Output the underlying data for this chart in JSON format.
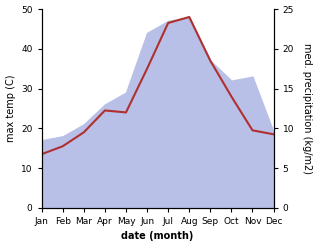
{
  "months": [
    "Jan",
    "Feb",
    "Mar",
    "Apr",
    "May",
    "Jun",
    "Jul",
    "Aug",
    "Sep",
    "Oct",
    "Nov",
    "Dec"
  ],
  "temp": [
    13.5,
    15.5,
    19.0,
    24.5,
    24.0,
    35.0,
    46.5,
    48.0,
    37.0,
    28.0,
    19.5,
    18.5
  ],
  "precip": [
    8.5,
    9.0,
    10.5,
    13.0,
    14.5,
    22.0,
    23.5,
    24.0,
    18.5,
    16.0,
    16.5,
    9.5
  ],
  "temp_color": "#b03030",
  "precip_color": "#b8c0e8",
  "ylabel_left": "max temp (C)",
  "ylabel_right": "med. precipitation (kg/m2)",
  "xlabel": "date (month)",
  "ylim_left": [
    0,
    50
  ],
  "ylim_right": [
    0,
    25
  ],
  "yticks_left": [
    0,
    10,
    20,
    30,
    40,
    50
  ],
  "yticks_right": [
    0,
    5,
    10,
    15,
    20,
    25
  ],
  "bg_color": "#ffffff",
  "line_width": 1.5,
  "label_fontsize": 7,
  "tick_fontsize": 6.5
}
